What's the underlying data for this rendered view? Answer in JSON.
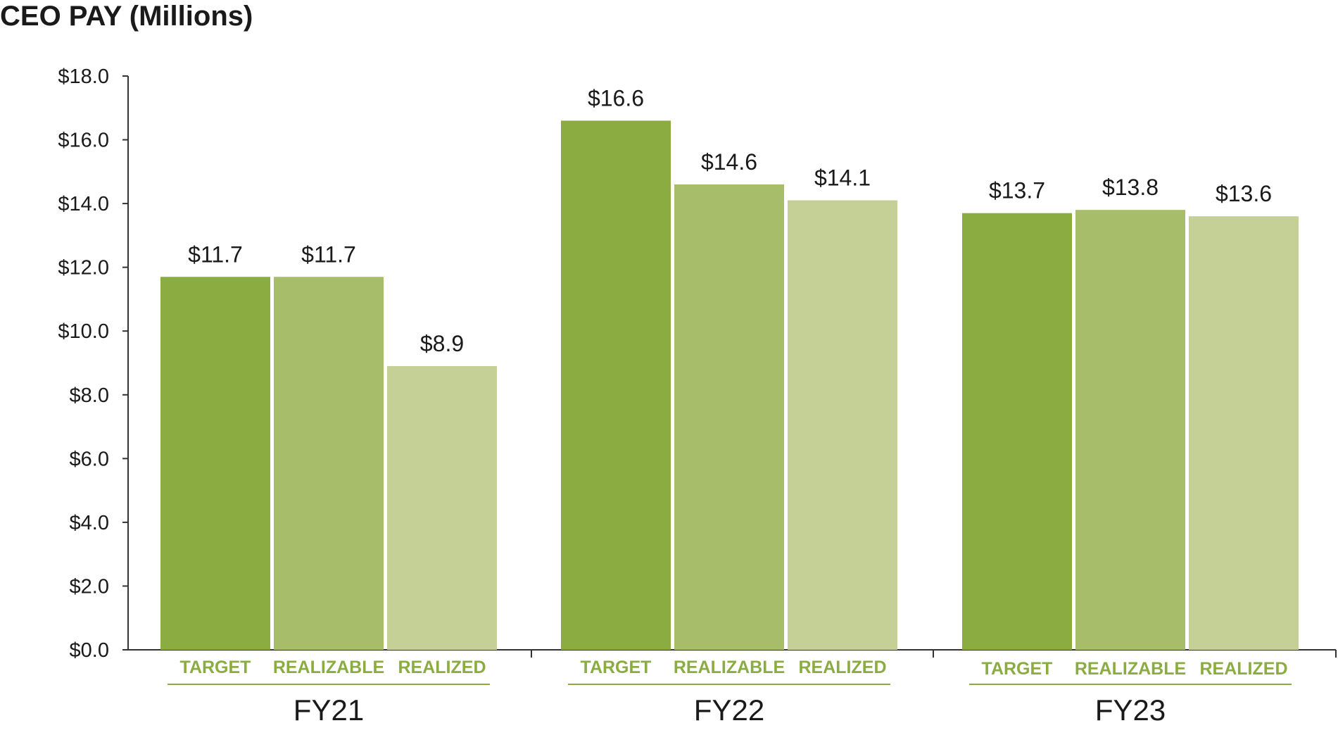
{
  "chart_data": {
    "type": "bar",
    "title": "CEO PAY (Millions)",
    "xlabel": "",
    "ylabel": "",
    "ylim": [
      0,
      18
    ],
    "grid": false,
    "y_tick_values": [
      0,
      2,
      4,
      6,
      8,
      10,
      12,
      14,
      16,
      18
    ],
    "y_tick_labels": [
      "$0.0",
      "$2.0",
      "$4.0",
      "$6.0",
      "$8.0",
      "$10.0",
      "$12.0",
      "$14.0",
      "$16.0",
      "$18.0"
    ],
    "groups": [
      "FY21",
      "FY22",
      "FY23"
    ],
    "categories": [
      "TARGET",
      "REALIZABLE",
      "REALIZED"
    ],
    "series": [
      {
        "name": "TARGET",
        "color": "#8BAC41",
        "values": [
          11.7,
          16.6,
          13.7
        ],
        "labels": [
          "$11.7",
          "$16.6",
          "$13.7"
        ]
      },
      {
        "name": "REALIZABLE",
        "color": "#A7BD69",
        "values": [
          11.7,
          14.6,
          13.8
        ],
        "labels": [
          "$11.7",
          "$14.6",
          "$13.8"
        ]
      },
      {
        "name": "REALIZED",
        "color": "#C5D096",
        "values": [
          8.9,
          14.1,
          13.6
        ],
        "labels": [
          "$8.9",
          "$14.1",
          "$13.6"
        ]
      }
    ],
    "colors": {
      "sub_label": "#8BAC41",
      "sub_label_underline": "#8BAC41",
      "axis": "#333333",
      "text": "#1a1a1a"
    }
  }
}
